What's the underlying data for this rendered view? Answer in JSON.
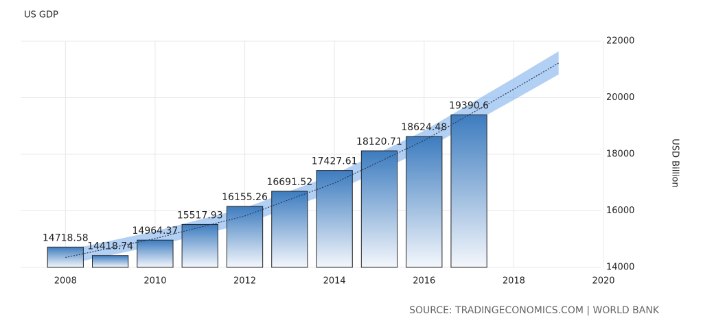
{
  "chart_data": {
    "type": "bar",
    "title": "US GDP",
    "y_label": "USD Billion",
    "source": "SOURCE: TRADINGECONOMICS.COM | WORLD BANK",
    "x": [
      2008,
      2009,
      2010,
      2011,
      2012,
      2013,
      2014,
      2015,
      2016,
      2017
    ],
    "values": [
      14718.58,
      14418.74,
      14964.37,
      15517.93,
      16155.26,
      16691.52,
      17427.61,
      18120.71,
      18624.48,
      19390.6
    ],
    "color": "#3d7cbf",
    "trend": {
      "x": [
        2008,
        2010,
        2012,
        2014,
        2016,
        2018,
        2019
      ],
      "values": [
        14350,
        15018,
        15818,
        16982,
        18485,
        20300,
        21224
      ],
      "lower": [
        14100,
        14760,
        15540,
        16680,
        18150,
        19920,
        20820
      ],
      "upper": [
        14600,
        15280,
        16100,
        17290,
        18830,
        20690,
        21640
      ],
      "color": "#2a3f66",
      "band_color": "#7fb0ec"
    },
    "xlim": [
      2007,
      2020
    ],
    "xticks": [
      2008,
      2010,
      2012,
      2014,
      2016,
      2018,
      2020
    ],
    "ylim": [
      14000,
      22000
    ],
    "yticks": [
      14000,
      16000,
      18000,
      20000,
      22000
    ],
    "grid": true
  }
}
